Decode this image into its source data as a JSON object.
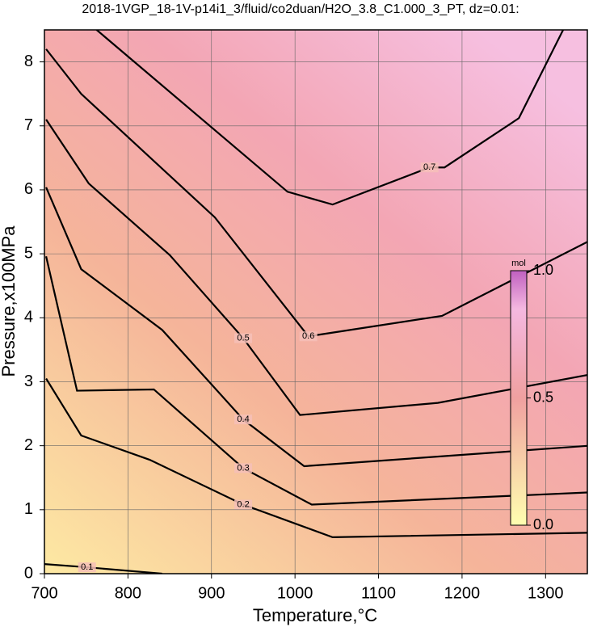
{
  "chart_data": {
    "type": "contour",
    "title": "2018-1VGP_18-1V-p14i1_3/fluid/co2duan/H2O_3.8_C1.000_3_PT, dz=0.01:",
    "x_label": "Temperature,°C",
    "y_label": "Pressure,x100MPa",
    "xlim": [
      700,
      1350
    ],
    "ylim": [
      0,
      8.5
    ],
    "xticks": [
      700,
      800,
      900,
      1000,
      1100,
      1200,
      1300
    ],
    "yticks": [
      0,
      1,
      2,
      3,
      4,
      5,
      6,
      7,
      8
    ],
    "grid": true,
    "contours": [
      {
        "level": 0.1,
        "x": [
          700,
          751,
          841
        ],
        "y": [
          0.15,
          0.1,
          0
        ]
      },
      {
        "level": 0.2,
        "x": [
          702,
          744,
          826,
          938,
          1045,
          1352
        ],
        "y": [
          3.05,
          2.16,
          1.78,
          1.08,
          0.57,
          0.64
        ]
      },
      {
        "level": 0.3,
        "x": [
          702,
          739,
          831,
          938,
          1020,
          1352
        ],
        "y": [
          4.96,
          2.86,
          2.88,
          1.65,
          1.08,
          1.27
        ]
      },
      {
        "level": 0.4,
        "x": [
          702,
          744,
          841,
          938,
          1011,
          1352
        ],
        "y": [
          6.04,
          4.76,
          3.81,
          2.41,
          1.68,
          2.0
        ]
      },
      {
        "level": 0.5,
        "x": [
          702,
          753,
          850,
          938,
          1006,
          1171,
          1352
        ],
        "y": [
          7.1,
          6.1,
          4.98,
          3.68,
          2.48,
          2.67,
          3.11
        ]
      },
      {
        "level": 0.6,
        "x": [
          702,
          744,
          904,
          1016,
          1176,
          1352
        ],
        "y": [
          8.2,
          7.5,
          5.57,
          3.71,
          4.03,
          5.2
        ]
      },
      {
        "level": 0.7,
        "x": [
          758,
          991,
          1045,
          1161,
          1179,
          1268,
          1321
        ],
        "y": [
          8.55,
          5.97,
          5.77,
          6.35,
          6.35,
          7.12,
          8.5
        ]
      }
    ],
    "colorbar": {
      "label": "mol",
      "ticks": [
        {
          "value": 0,
          "label": "0.0"
        },
        {
          "value": 0.5,
          "label": "0.5"
        },
        {
          "value": 1,
          "label": "1.0"
        }
      ]
    }
  }
}
